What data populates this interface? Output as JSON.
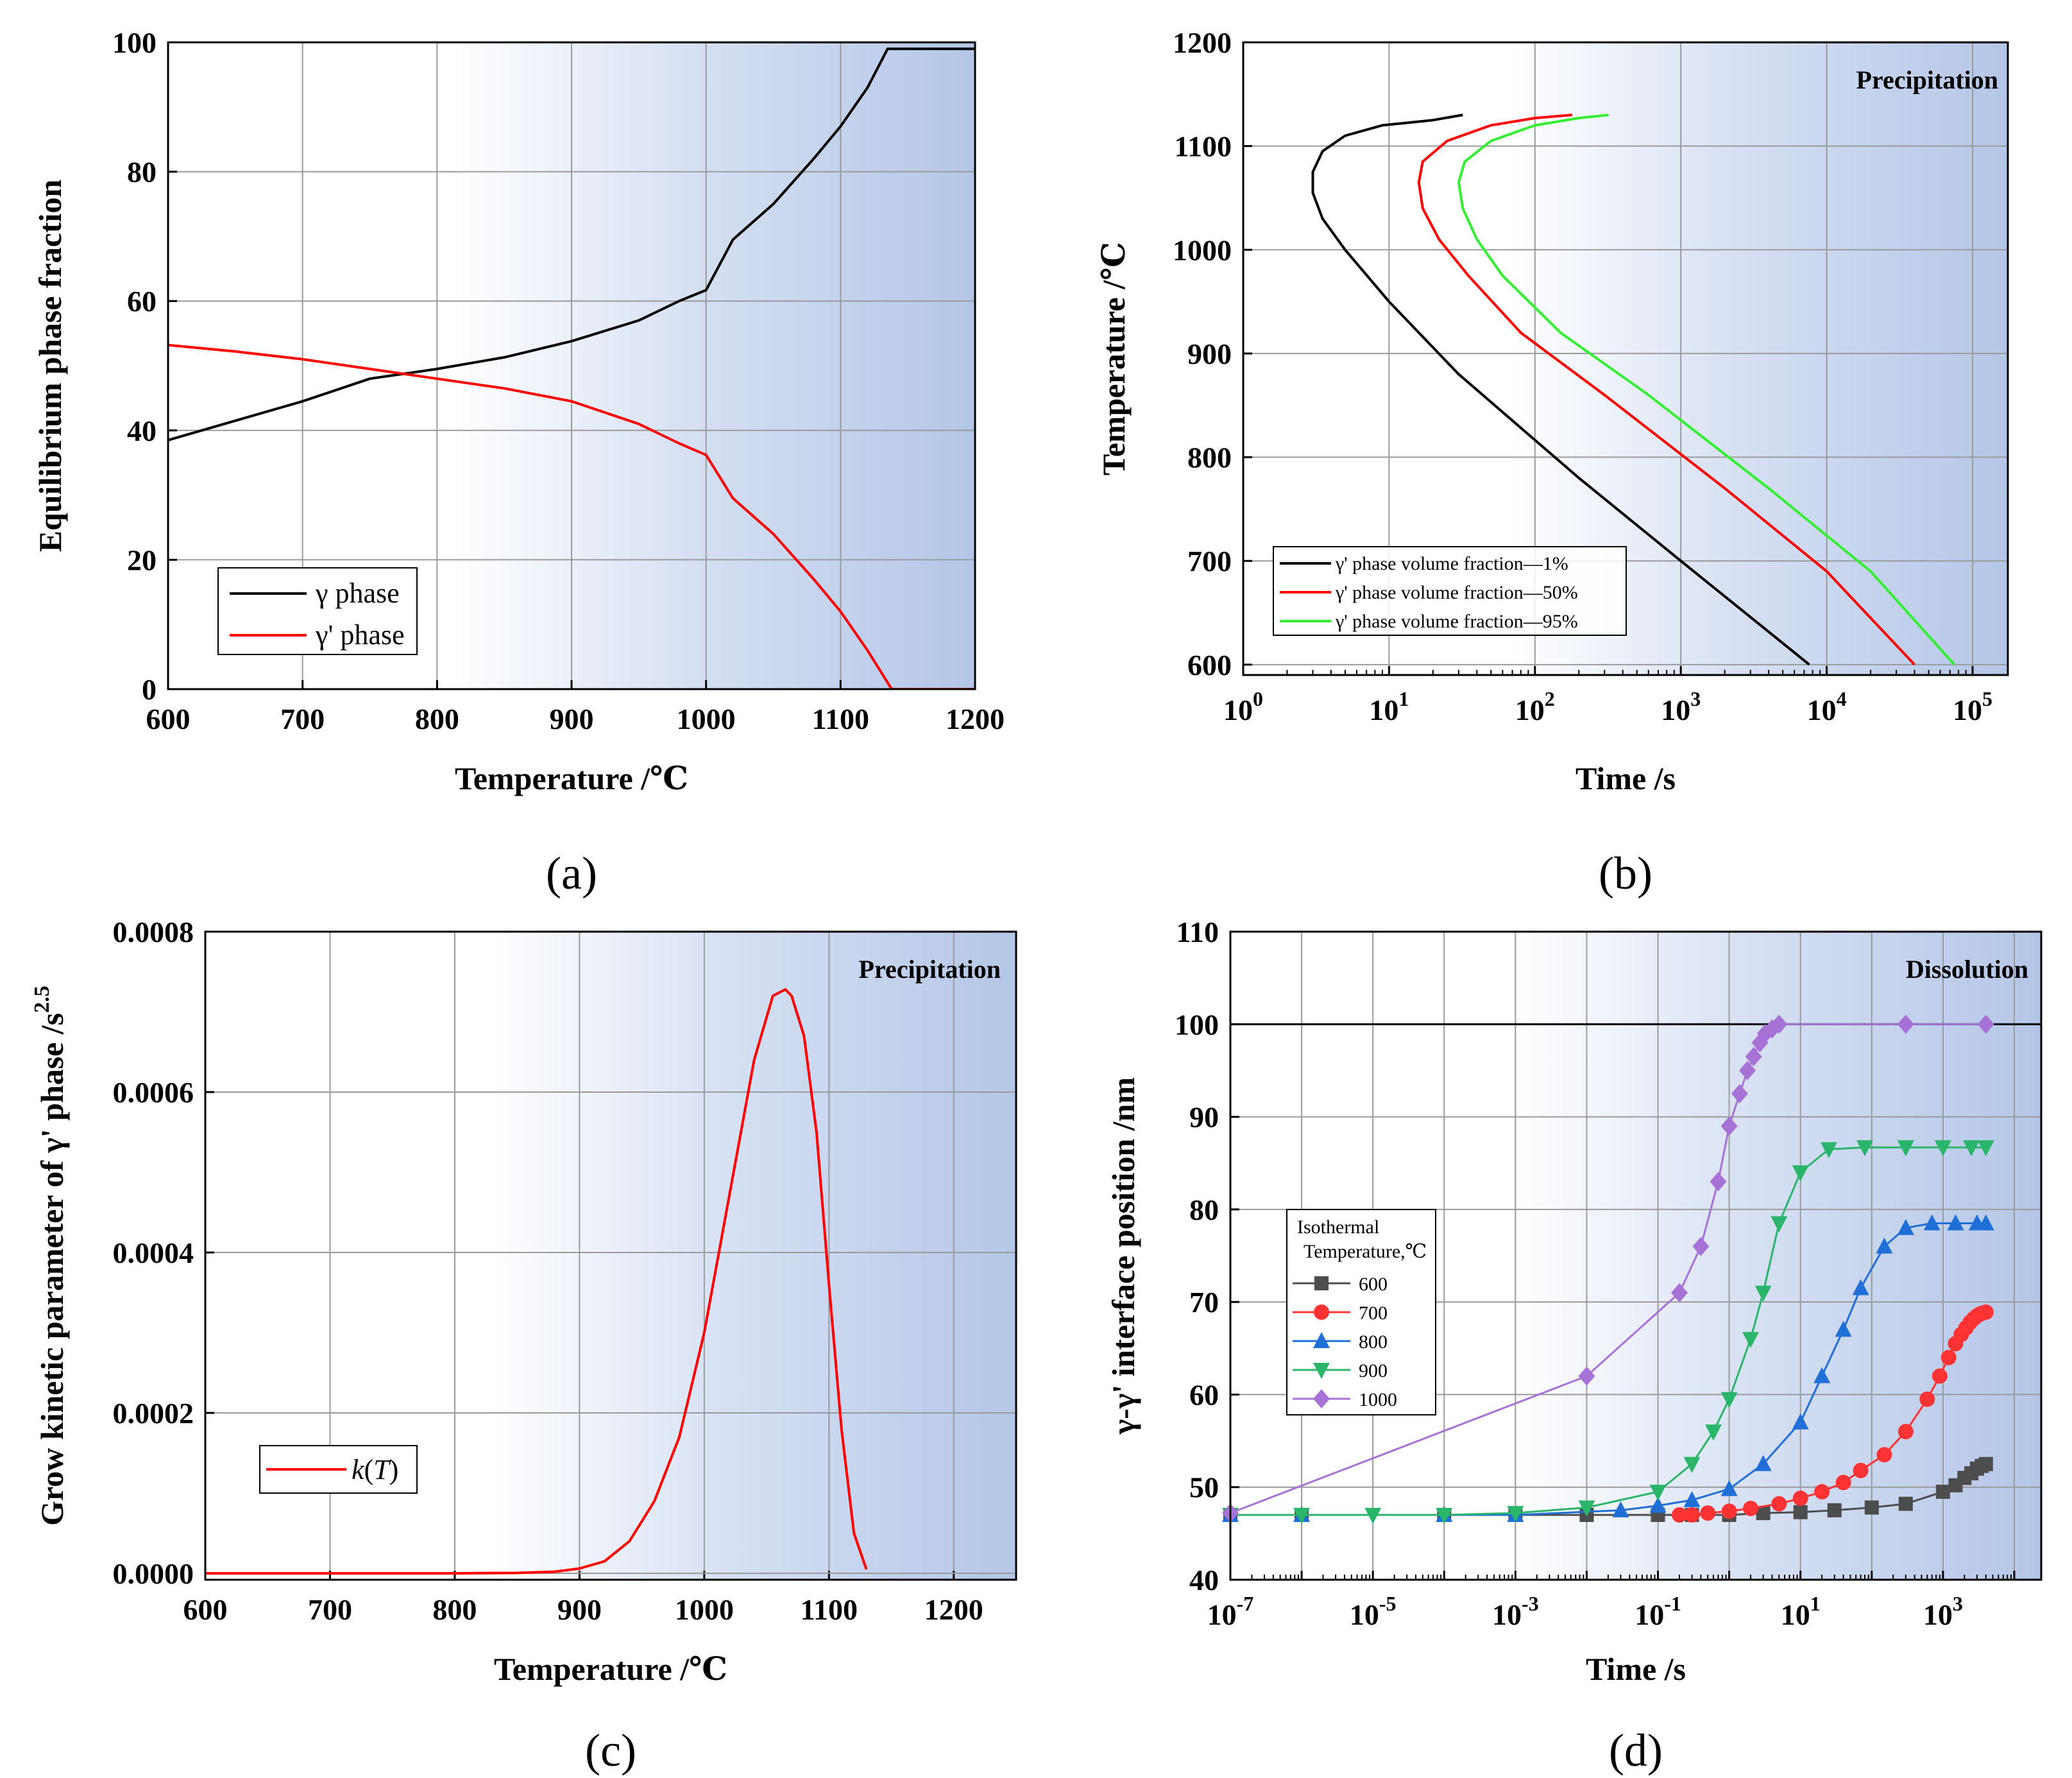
{
  "chart_data": [
    {
      "panel": "a",
      "caption": "(a)",
      "type": "line",
      "xlabel": "Temperature /℃",
      "ylabel": "Equilibrium phase fraction",
      "xlim": [
        600,
        1200
      ],
      "ylim": [
        0,
        100
      ],
      "xticks": [
        "600",
        "700",
        "800",
        "900",
        "1000",
        "1100",
        "1200"
      ],
      "yticks": [
        "0",
        "20",
        "40",
        "60",
        "80",
        "100"
      ],
      "grid": true,
      "legend_position": "bottom-left",
      "series": [
        {
          "name": "γ phase",
          "color": "#000000",
          "x": [
            600,
            650,
            700,
            750,
            800,
            850,
            900,
            950,
            980,
            1000,
            1020,
            1050,
            1080,
            1100,
            1120,
            1135,
            1200
          ],
          "y": [
            38.5,
            41.5,
            44.5,
            48,
            49.5,
            51.3,
            53.8,
            57,
            60,
            61.7,
            69.5,
            75,
            82,
            87,
            93,
            99,
            99
          ]
        },
        {
          "name": "γ' phase",
          "color": "#ff0000",
          "x": [
            600,
            650,
            700,
            750,
            800,
            850,
            900,
            950,
            980,
            1000,
            1020,
            1050,
            1080,
            1100,
            1120,
            1138,
            1200
          ],
          "y": [
            53.2,
            52.2,
            51,
            49.5,
            48,
            46.5,
            44.5,
            41,
            38,
            36.2,
            29.5,
            24,
            17,
            12,
            6,
            0,
            0
          ]
        }
      ]
    },
    {
      "panel": "b",
      "caption": "(b)",
      "type": "line",
      "xscale": "log",
      "xlabel": "Time /s",
      "ylabel": "Temperature /℃",
      "xlim": [
        1,
        100000
      ],
      "ylim": [
        590,
        1200
      ],
      "xticks": [
        {
          "base": "10",
          "exp": "0"
        },
        {
          "base": "10",
          "exp": "1"
        },
        {
          "base": "10",
          "exp": "2"
        },
        {
          "base": "10",
          "exp": "3"
        },
        {
          "base": "10",
          "exp": "4"
        },
        {
          "base": "10",
          "exp": "5"
        }
      ],
      "yticks": [
        "600",
        "700",
        "800",
        "900",
        "1000",
        "1100",
        "1200"
      ],
      "annotation": "Precipitation",
      "grid": true,
      "legend_position": "bottom-left",
      "series": [
        {
          "name": "γ' phase volume fraction—1%",
          "color": "#000000",
          "t": [
            32,
            20,
            9,
            5,
            3.5,
            3.0,
            3.0,
            3.5,
            5,
            10,
            30,
            200,
            1000,
            7600
          ],
          "T": [
            1130,
            1125,
            1120,
            1110,
            1095,
            1075,
            1055,
            1030,
            1000,
            950,
            880,
            780,
            700,
            600
          ]
        },
        {
          "name": "γ' phase volume fraction—50%",
          "color": "#ff0000",
          "t": [
            180,
            100,
            50,
            25,
            17,
            16,
            17,
            22,
            35,
            80,
            300,
            2000,
            10000,
            40000
          ],
          "T": [
            1130,
            1127,
            1120,
            1105,
            1085,
            1065,
            1040,
            1010,
            975,
            920,
            860,
            770,
            690,
            600
          ]
        },
        {
          "name": "γ' phase volume fraction—95%",
          "color": "#33ee33",
          "t": [
            320,
            200,
            100,
            50,
            33,
            30,
            32,
            40,
            60,
            150,
            600,
            4000,
            20000,
            75000
          ],
          "T": [
            1130,
            1127,
            1120,
            1105,
            1085,
            1065,
            1040,
            1010,
            975,
            920,
            860,
            770,
            690,
            600
          ]
        }
      ]
    },
    {
      "panel": "c",
      "caption": "(c)",
      "type": "line",
      "xlabel": "Temperature /℃",
      "ylabel": "Grow kinetic parameter of γ' phase /s",
      "ylabel_sup": "2.5",
      "xlim": [
        600,
        1250
      ],
      "ylim": [
        0,
        0.0008
      ],
      "xticks": [
        "600",
        "700",
        "800",
        "900",
        "1000",
        "1100",
        "1200"
      ],
      "yticks": [
        "0.0000",
        "0.0002",
        "0.0004",
        "0.0006",
        "0.0008"
      ],
      "annotation": "Precipitation",
      "grid": true,
      "legend_position": "bottom-left",
      "legend_label_main": "k",
      "legend_label_arg": "T",
      "series": [
        {
          "name": "k(T)",
          "color": "#ff0000",
          "x": [
            600,
            700,
            800,
            850,
            880,
            900,
            920,
            940,
            960,
            980,
            1000,
            1020,
            1040,
            1055,
            1065,
            1070,
            1080,
            1090,
            1100,
            1110,
            1120,
            1130
          ],
          "y": [
            0,
            0,
            0,
            5e-07,
            2e-06,
            6e-06,
            1.5e-05,
            4e-05,
            9e-05,
            0.00017,
            0.0003,
            0.00047,
            0.00064,
            0.00072,
            0.000728,
            0.00072,
            0.00067,
            0.00055,
            0.00036,
            0.00018,
            5e-05,
            5e-06
          ]
        }
      ]
    },
    {
      "panel": "d",
      "caption": "(d)",
      "type": "scatter",
      "xscale": "log",
      "xlabel": "Time /s",
      "ylabel": "γ-γ' interface position /nm",
      "xlim": [
        1e-07,
        10000
      ],
      "ylim": [
        40,
        110
      ],
      "xticks": [
        {
          "base": "10",
          "exp": "-7"
        },
        {
          "base": "10",
          "exp": "-5"
        },
        {
          "base": "10",
          "exp": "-3"
        },
        {
          "base": "10",
          "exp": "-1"
        },
        {
          "base": "10",
          "exp": "1"
        },
        {
          "base": "10",
          "exp": "3"
        }
      ],
      "yticks": [
        "40",
        "50",
        "60",
        "70",
        "80",
        "90",
        "100",
        "110"
      ],
      "reference_line": 100,
      "annotation": "Dissolution",
      "legend_title_line1": "Isothermal",
      "legend_title_line2": "Temperature,℃",
      "legend_position": "middle-left",
      "grid": true,
      "series": [
        {
          "name": "600",
          "color": "#4d4d4d",
          "marker": "square",
          "t": [
            1e-07,
            1e-06,
            0.0001,
            0.001,
            0.01,
            0.1,
            0.3,
            1,
            3,
            10,
            30,
            100,
            300,
            1000,
            1500,
            2000,
            2500,
            3000,
            3500,
            4000
          ],
          "v": [
            47,
            47,
            47,
            47,
            47,
            47,
            47,
            47,
            47.2,
            47.3,
            47.5,
            47.8,
            48.2,
            49.5,
            50.2,
            51,
            51.5,
            52,
            52.3,
            52.5
          ]
        },
        {
          "name": "700",
          "color": "#ff3333",
          "marker": "circle",
          "t": [
            0.2,
            0.3,
            0.5,
            1,
            2,
            5,
            10,
            20,
            40,
            70,
            150,
            300,
            600,
            900,
            1200,
            1500,
            1800,
            2100,
            2400,
            2700,
            3000,
            3300,
            3600,
            4000
          ],
          "v": [
            47,
            47,
            47.2,
            47.4,
            47.7,
            48.2,
            48.8,
            49.5,
            50.5,
            51.8,
            53.5,
            56,
            59.5,
            62,
            64,
            65.5,
            66.5,
            67.2,
            67.8,
            68.2,
            68.5,
            68.7,
            68.8,
            68.9
          ]
        },
        {
          "name": "800",
          "color": "#1f6fd6",
          "marker": "triangle-up",
          "t": [
            1e-07,
            1e-06,
            0.0001,
            0.001,
            0.03,
            0.1,
            0.3,
            1,
            3,
            10,
            20,
            40,
            70,
            150,
            300,
            700,
            1500,
            3000,
            4000
          ],
          "v": [
            47,
            47,
            47,
            47,
            47.5,
            48,
            48.6,
            49.8,
            52.5,
            57,
            62,
            67,
            71.5,
            76,
            78,
            78.5,
            78.5,
            78.5,
            78.5
          ]
        },
        {
          "name": "900",
          "color": "#2ab56a",
          "marker": "triangle-down",
          "t": [
            1e-07,
            1e-06,
            1e-05,
            0.0001,
            0.001,
            0.01,
            0.1,
            0.3,
            0.6,
            1,
            2,
            3,
            5,
            10,
            25,
            80,
            300,
            1000,
            2500,
            4000
          ],
          "v": [
            47,
            47,
            47,
            47,
            47.2,
            47.8,
            49.5,
            52.5,
            56,
            59.5,
            66,
            71,
            78.5,
            84,
            86.5,
            86.7,
            86.7,
            86.7,
            86.7,
            86.7
          ]
        },
        {
          "name": "1000",
          "color": "#a772d6",
          "marker": "diamond",
          "t": [
            1e-07,
            0.01,
            0.2,
            0.4,
            0.7,
            1,
            1.4,
            1.8,
            2.2,
            2.7,
            3.2,
            4,
            5,
            300,
            4000
          ],
          "v": [
            47.2,
            62,
            71,
            76,
            83,
            89,
            92.5,
            95,
            96.5,
            98,
            99,
            99.5,
            100,
            100,
            100
          ]
        }
      ]
    }
  ]
}
